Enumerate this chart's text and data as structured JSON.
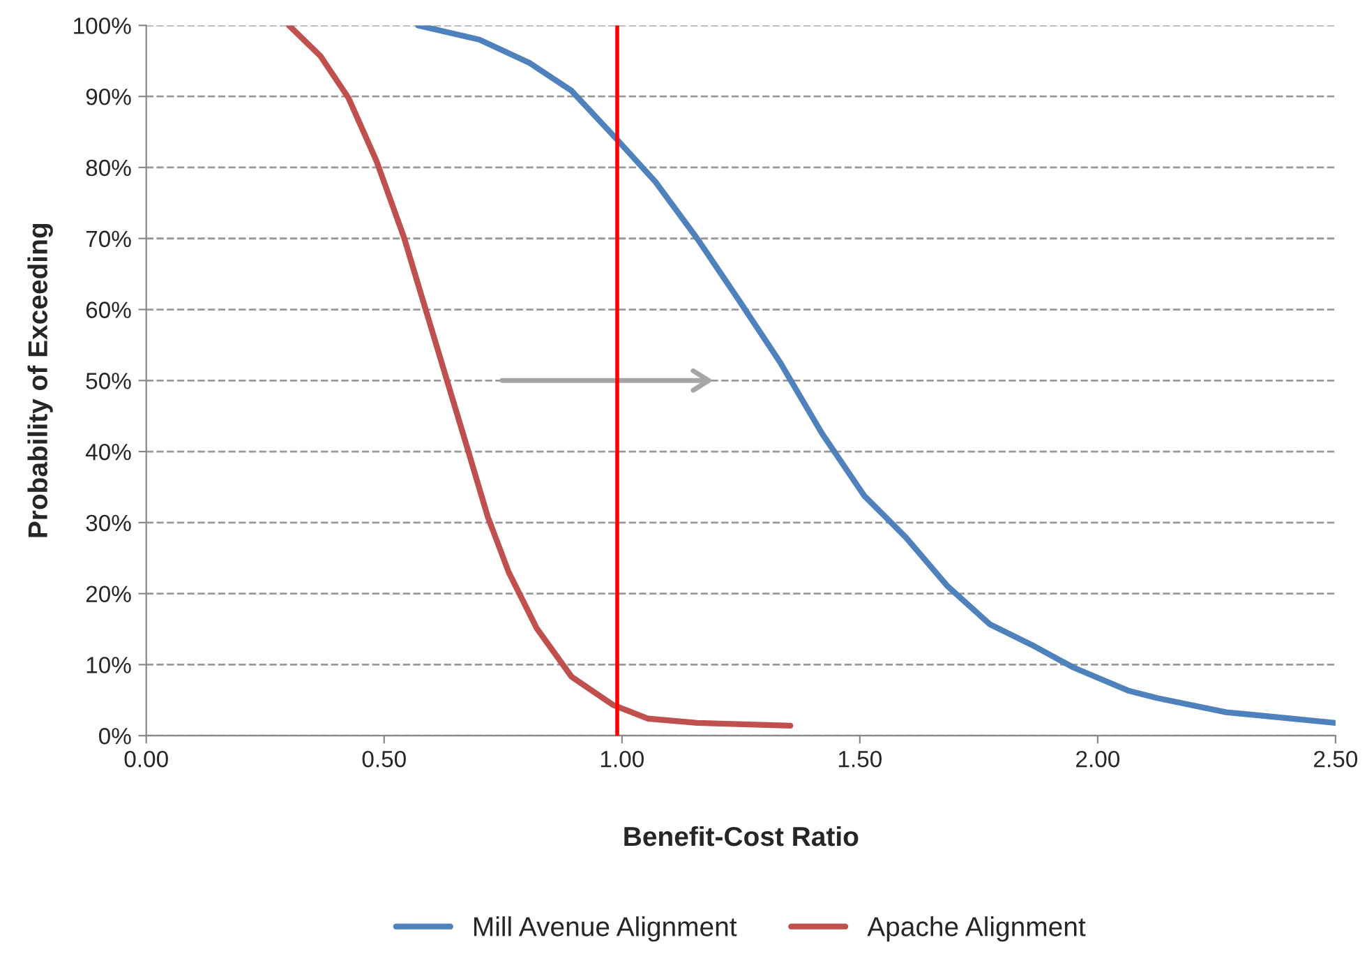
{
  "chart_data": {
    "type": "line",
    "xlabel": "Benefit-Cost Ratio",
    "ylabel": "Probability of Exceeding",
    "series": [
      {
        "name": "Mill Avenue Alignment",
        "color": "#4f81bd",
        "x": [
          0.571,
          0.7,
          0.806,
          0.894,
          0.99,
          1.07,
          1.158,
          1.246,
          1.333,
          1.42,
          1.509,
          1.597,
          1.685,
          1.773,
          1.861,
          1.949,
          2.066,
          2.125,
          2.27,
          2.5
        ],
        "values": [
          100,
          98,
          94.7,
          90.8,
          83.9,
          78,
          70,
          61.3,
          52.5,
          42.6,
          33.8,
          27.9,
          21,
          15.7,
          12.8,
          9.6,
          6.3,
          5.3,
          3.3,
          1.8
        ]
      },
      {
        "name": "Apache Alignment",
        "color": "#c0504d",
        "x": [
          0.3,
          0.366,
          0.425,
          0.484,
          0.542,
          0.586,
          0.63,
          0.674,
          0.718,
          0.762,
          0.821,
          0.894,
          0.982,
          1.055,
          1.158,
          1.354
        ],
        "values": [
          100,
          95.7,
          89.8,
          80.9,
          70.1,
          60.3,
          50.5,
          40.7,
          30.8,
          23,
          15.1,
          8.3,
          4.3,
          2.4,
          1.8,
          1.4
        ]
      }
    ],
    "ref_lines": [
      {
        "axis": "x",
        "value": 0.99,
        "color": "#ff0000"
      }
    ],
    "xlim": [
      0,
      2.5
    ],
    "xticks": [
      {
        "value": 0,
        "label": "0.00"
      },
      {
        "value": 0.5,
        "label": "0.50"
      },
      {
        "value": 1,
        "label": "1.00"
      },
      {
        "value": 1.5,
        "label": "1.50"
      },
      {
        "value": 2,
        "label": "2.00"
      },
      {
        "value": 2.5,
        "label": "2.50"
      }
    ],
    "ylim": [
      0,
      100
    ],
    "yticks": [
      {
        "value": 0,
        "label": "0%"
      },
      {
        "value": 10,
        "label": "10%"
      },
      {
        "value": 20,
        "label": "20%"
      },
      {
        "value": 30,
        "label": "30%"
      },
      {
        "value": 40,
        "label": "40%"
      },
      {
        "value": 50,
        "label": "50%"
      },
      {
        "value": 60,
        "label": "60%"
      },
      {
        "value": 70,
        "label": "70%"
      },
      {
        "value": 80,
        "label": "80%"
      },
      {
        "value": 90,
        "label": "90%"
      },
      {
        "value": 100,
        "label": "100%"
      }
    ],
    "grid": "y",
    "legend": "bottom",
    "line_style": "solid"
  }
}
